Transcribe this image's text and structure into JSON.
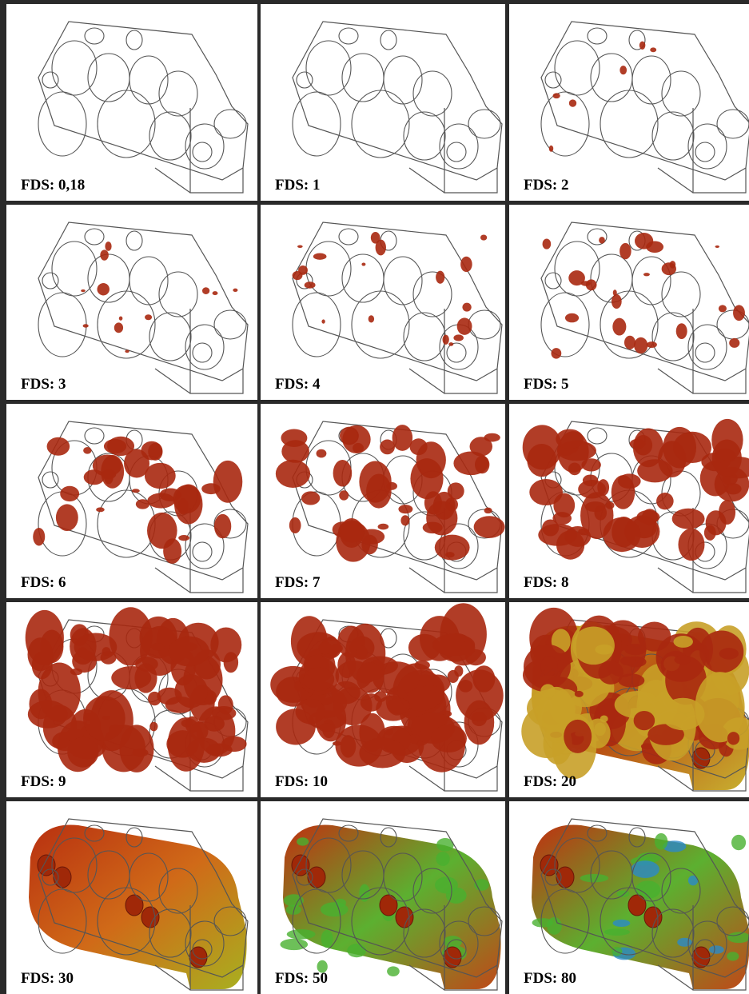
{
  "panels": [
    {
      "label": "FDS: 0,18"
    },
    {
      "label": "FDS: 1"
    },
    {
      "label": "FDS: 2"
    },
    {
      "label": "FDS: 3"
    },
    {
      "label": "FDS: 4"
    },
    {
      "label": "FDS: 5"
    },
    {
      "label": "FDS: 6"
    },
    {
      "label": "FDS: 7"
    },
    {
      "label": "FDS: 8"
    },
    {
      "label": "FDS: 9"
    },
    {
      "label": "FDS: 10"
    },
    {
      "label": "FDS: 20"
    },
    {
      "label": "FDS: 30"
    },
    {
      "label": "FDS: 50"
    },
    {
      "label": "FDS: 80"
    }
  ]
}
